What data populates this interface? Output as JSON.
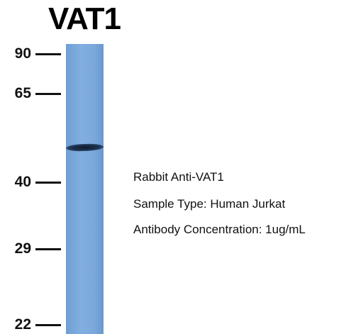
{
  "title": "VAT1",
  "markers": [
    "90",
    "65",
    "40",
    "29",
    "22"
  ],
  "annotations": [
    "Rabbit Anti-VAT1",
    "Sample Type: Human Jurkat",
    "Antibody Concentration: 1ug/mL"
  ]
}
